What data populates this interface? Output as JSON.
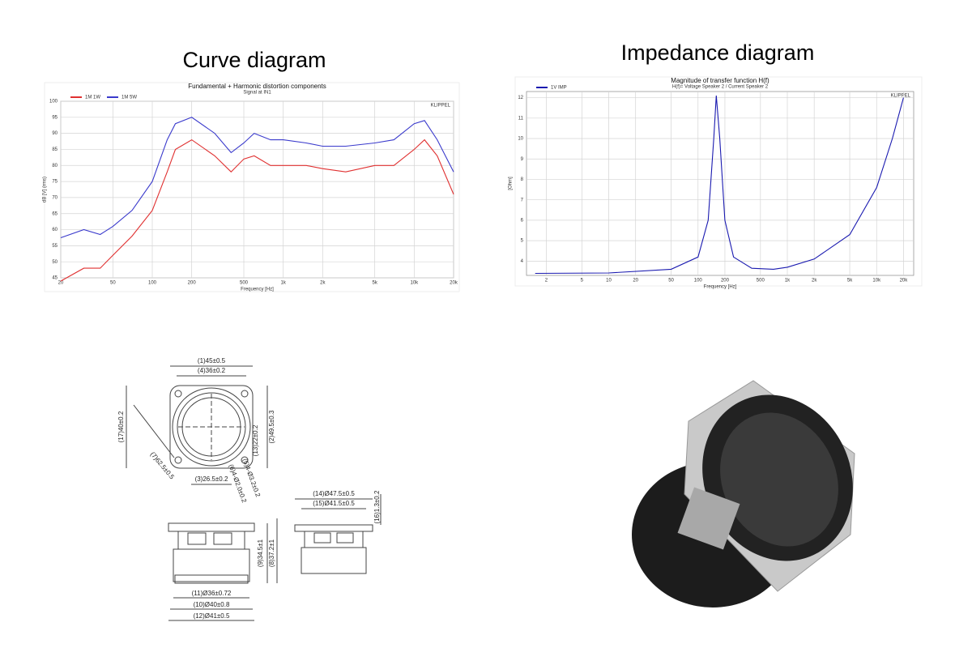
{
  "headings": [
    "Curve diagram",
    "Impedance diagram"
  ],
  "chart_data": [
    {
      "type": "line",
      "title": "Fundamental + Harmonic distortion components",
      "subtitle": "Signal at IN1",
      "brand": "KLIPPEL",
      "x_label": "Frequency [Hz]",
      "y_label": "dB [V] (rms)",
      "log_x": true,
      "grid": true,
      "x": [
        20,
        30,
        40,
        50,
        70,
        100,
        130,
        150,
        200,
        300,
        400,
        500,
        600,
        800,
        1000,
        1500,
        2000,
        3000,
        5000,
        7000,
        10000,
        12000,
        15000,
        20000
      ],
      "series": [
        {
          "name": "1M 1W",
          "color": "#e03030",
          "values": [
            44,
            48,
            48,
            52,
            58,
            66,
            78,
            85,
            88,
            83,
            78,
            82,
            83,
            80,
            80,
            80,
            79,
            78,
            80,
            80,
            85,
            88,
            83,
            71
          ]
        },
        {
          "name": "1M 5W",
          "color": "#3a3acc",
          "values": [
            57.5,
            60,
            58.5,
            61,
            66,
            75,
            88,
            93,
            95,
            90,
            84,
            87,
            90,
            88,
            88,
            87,
            86,
            86,
            87,
            88,
            93,
            94,
            88,
            78
          ]
        }
      ],
      "xlim": [
        20,
        20000
      ],
      "xticks": [
        20,
        50,
        100,
        200,
        500,
        {
          "value": 1000,
          "label": "1k"
        },
        {
          "value": 2000,
          "label": "2k"
        },
        {
          "value": 5000,
          "label": "5k"
        },
        {
          "value": 10000,
          "label": "10k"
        },
        {
          "value": 20000,
          "label": "20k"
        }
      ],
      "ylim": [
        45,
        100
      ],
      "yticks": [
        45,
        50,
        55,
        60,
        65,
        70,
        75,
        80,
        85,
        90,
        95,
        100
      ]
    },
    {
      "type": "line",
      "title": "Magnitude of transfer function H(f)",
      "subtitle": "H(f)= Voltage Speaker 2 / Current Speaker 2",
      "brand": "KLIPPEL",
      "x_label": "Frequency [Hz]",
      "y_label": "[Ohm]",
      "log_x": true,
      "grid": true,
      "x": [
        1.5,
        10,
        50,
        100,
        130,
        150,
        160,
        175,
        200,
        250,
        400,
        700,
        1000,
        2000,
        5000,
        10000,
        15000,
        20000
      ],
      "series": [
        {
          "name": "1V IMP",
          "color": "#1a1ab0",
          "values": [
            3.4,
            3.42,
            3.6,
            4.2,
            6,
            10,
            12.1,
            10,
            6,
            4.2,
            3.65,
            3.6,
            3.7,
            4.1,
            5.3,
            7.6,
            10,
            12
          ]
        }
      ],
      "xlim": [
        1.2,
        26000
      ],
      "xticks": [
        2,
        5,
        10,
        20,
        50,
        100,
        200,
        500,
        {
          "value": 1000,
          "label": "1k"
        },
        {
          "value": 2000,
          "label": "2k"
        },
        {
          "value": 5000,
          "label": "5k"
        },
        {
          "value": 10000,
          "label": "10k"
        },
        {
          "value": 20000,
          "label": "20k"
        }
      ],
      "ylim": [
        3.3,
        12.3
      ],
      "yticks": [
        4,
        5,
        6,
        7,
        8,
        9,
        10,
        11,
        12
      ]
    }
  ],
  "drawing": {
    "dimensions": [
      "(1)45±0.5",
      "(4)36±0.2",
      "(17)40±0.2",
      "(2)49.5±0.3",
      "(13)22±0.2",
      "(7)62.5±0.5",
      "(3)26.5±0.2",
      "(6)4-Ø2.0±0.2",
      "(5)4-Ø3.2±0.2",
      "(14)Ø47.5±0.5",
      "(15)Ø41.5±0.5",
      "(16)1.3±0.2",
      "(9)34.5±1",
      "(8)37.2±1",
      "(11)Ø36±0.72",
      "(10)Ø40±0.8",
      "(12)Ø41±0.5"
    ]
  }
}
